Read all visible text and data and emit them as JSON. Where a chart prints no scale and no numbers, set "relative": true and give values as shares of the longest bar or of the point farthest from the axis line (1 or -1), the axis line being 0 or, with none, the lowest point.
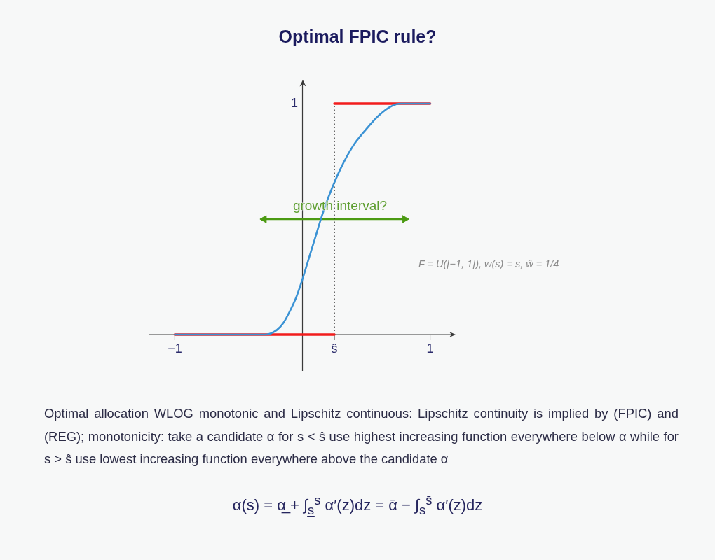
{
  "chart_data": {
    "type": "line",
    "title": "Optimal FPIC rule?",
    "relative": true,
    "annotations": [
      "growth interval?",
      "1",
      "F = U([−1, 1]),  w(s) = s,  ŵ = 1/4",
      "Optimal allocation WLOG monotonic and Lipschitz continuous: Lipschitz continuity is implied by (FPIC) and (REG); monotonicity: take a candidate α for s < ŝ use highest increasing function everywhere below α while for s > ŝ use lowest increasing function everywhere above the candidate α",
      "α(s) = α̲ + ∫$_{s̲}$$^{s}$ α′(z)dz = ᾱ − ∫$_{s}$$^{s̄}$ α′(z)dz"
    ],
    "series": [
      {
        "color": "#3a92d4",
        "x": [
          -1,
          -0.29,
          -0.2,
          -0.15,
          -0.1,
          -0.05,
          0,
          0.05,
          0.1,
          0.15,
          0.2,
          0.3,
          0.4,
          0.5,
          0.6,
          0.7,
          0.77,
          1
        ],
        "values": [
          0,
          0,
          0.02,
          0.05,
          0.1,
          0.16,
          0.24,
          0.33,
          0.42,
          0.51,
          0.59,
          0.72,
          0.82,
          0.89,
          0.95,
          0.99,
          1,
          1
        ]
      },
      {
        "color": "#f21d1d",
        "x": [
          -1,
          0.25
        ],
        "values": [
          0,
          0
        ]
      },
      {
        "color": "#f21d1d",
        "x": [
          0.25,
          1
        ],
        "values": [
          1,
          1
        ]
      },
      {
        "color": "#222222",
        "line_style": "dotted",
        "x": [
          0.25,
          0.25
        ],
        "values": [
          0,
          1
        ]
      },
      {
        "color": "#4b9a12",
        "marker": "triangle",
        "x": [
          -0.3,
          0.8
        ],
        "values": [
          0.5,
          0.5
        ]
      }
    ],
    "xlim": [
      -1.2,
      1.2
    ],
    "xticks": [
      {
        "value": -1,
        "label": "−1"
      },
      {
        "value": 0.25,
        "label": "ŝ"
      },
      1
    ],
    "grid": false,
    "legend": false
  }
}
